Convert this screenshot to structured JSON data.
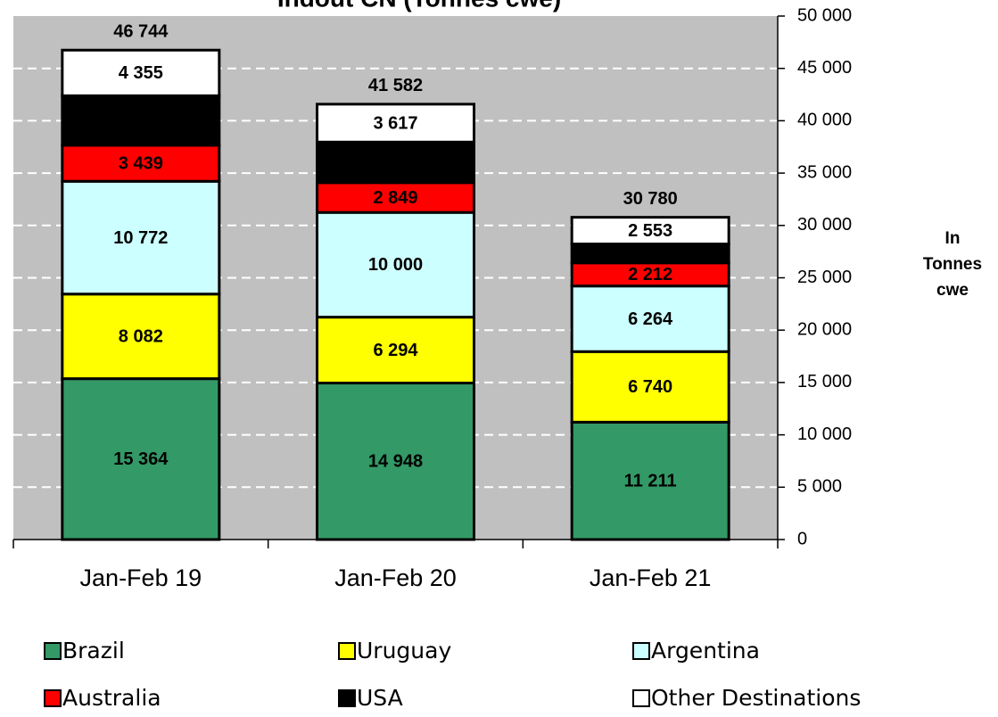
{
  "chart_data": {
    "type": "stacked_bar",
    "title": "Indout CN (Tonnes cwe)",
    "y_axis_label": "In Tonnes cwe",
    "categories": [
      "Jan-Feb 19",
      "Jan-Feb 20",
      "Jan-Feb 21"
    ],
    "series": [
      {
        "name": "Brazil",
        "color": "#339966",
        "values": [
          15364,
          14948,
          11211
        ],
        "value_labels": [
          "15 364",
          "14 948",
          "11 211"
        ]
      },
      {
        "name": "Uruguay",
        "color": "#ffff00",
        "values": [
          8082,
          6294,
          6740
        ],
        "value_labels": [
          "8 082",
          "6 294",
          "6 740"
        ]
      },
      {
        "name": "Argentina",
        "color": "#ccffff",
        "values": [
          10772,
          10000,
          6264
        ],
        "value_labels": [
          "10 772",
          "10 000",
          "6 264"
        ]
      },
      {
        "name": "Australia",
        "color": "#ff0000",
        "values": [
          3439,
          2849,
          2212
        ],
        "value_labels": [
          "3 439",
          "2 849",
          "2 212"
        ]
      },
      {
        "name": "USA",
        "color": "#000000",
        "values": [
          4732,
          3874,
          1800
        ]
      },
      {
        "name": "Other Destinations",
        "color": "#ffffff",
        "values": [
          4355,
          3617,
          2553
        ],
        "value_labels": [
          "4 355",
          "3 617",
          "2 553"
        ]
      }
    ],
    "totals": [
      46744,
      41582,
      30780
    ],
    "total_labels": [
      "46 744",
      "41 582",
      "30 780"
    ],
    "ylim": [
      0,
      50000
    ],
    "yticks": [
      0,
      {
        "value": 5000,
        "label": "5 000"
      },
      {
        "value": 10000,
        "label": "10 000"
      },
      {
        "value": 15000,
        "label": "15 000"
      },
      {
        "value": 20000,
        "label": "20 000"
      },
      {
        "value": 25000,
        "label": "25 000"
      },
      {
        "value": 30000,
        "label": "30 000"
      },
      {
        "value": 35000,
        "label": "35 000"
      },
      {
        "value": 40000,
        "label": "40 000"
      },
      {
        "value": 45000,
        "label": "45 000"
      },
      {
        "value": 50000,
        "label": "50 000"
      }
    ],
    "grid": true,
    "plot_background": "#c0c0c0",
    "legend_position": "bottom"
  }
}
